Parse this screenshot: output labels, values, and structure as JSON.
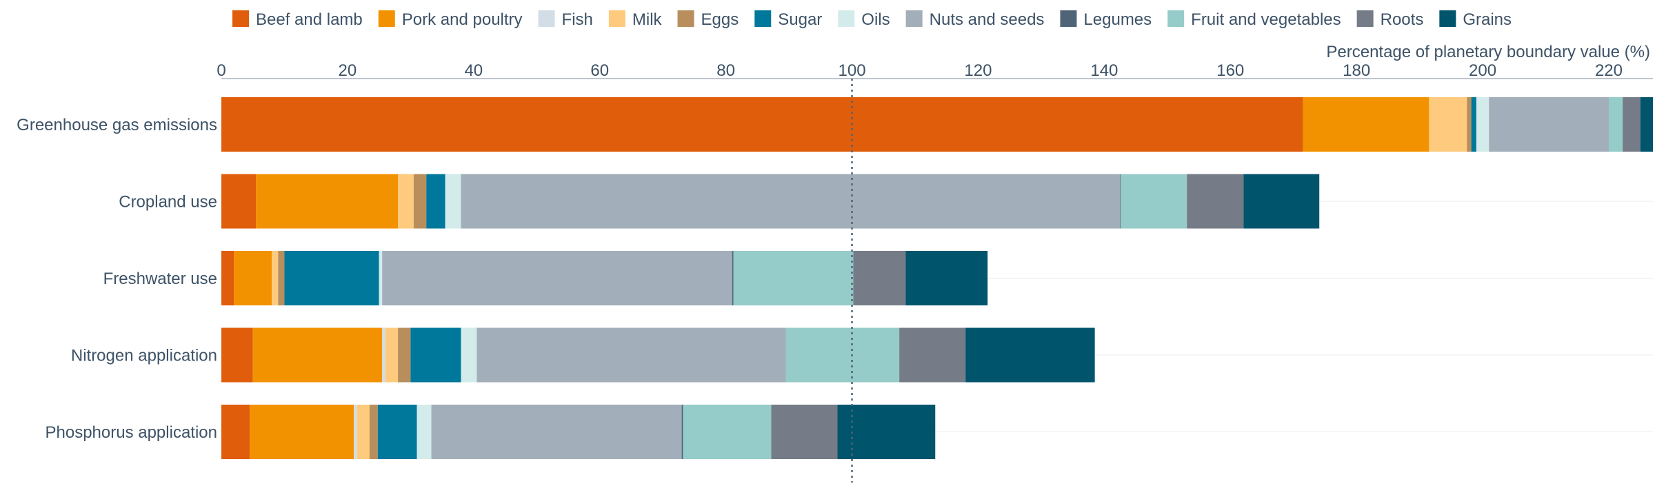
{
  "chart_data": {
    "type": "bar",
    "orientation": "horizontal",
    "stacked": true,
    "title": "",
    "xlabel": "Percentage of planetary boundary value (%)",
    "ylabel": "",
    "xlim": [
      0,
      227
    ],
    "x_ticks": [
      0,
      20,
      40,
      60,
      80,
      100,
      120,
      140,
      160,
      180,
      200,
      220
    ],
    "reference_line": {
      "value": 100,
      "style": "dotted"
    },
    "legend_position": "top",
    "grid": "horizontal",
    "categories": [
      "Greenhouse gas emissions",
      "Cropland use",
      "Freshwater use",
      "Nitrogen application",
      "Phosphorus application"
    ],
    "series": [
      {
        "name": "Beef and lamb",
        "color": "#df5d0b",
        "values": [
          171.5,
          5.5,
          2.0,
          5.0,
          4.5
        ]
      },
      {
        "name": "Pork and poultry",
        "color": "#f39200",
        "values": [
          20.0,
          22.5,
          6.0,
          20.5,
          16.5
        ]
      },
      {
        "name": "Fish",
        "color": "#d2dde6",
        "values": [
          0.0,
          0.0,
          0.0,
          0.5,
          0.5
        ]
      },
      {
        "name": "Milk",
        "color": "#fdca7e",
        "values": [
          6.0,
          2.5,
          1.0,
          2.0,
          2.0
        ]
      },
      {
        "name": "Eggs",
        "color": "#b88f5c",
        "values": [
          0.7,
          2.0,
          1.0,
          2.0,
          1.3
        ]
      },
      {
        "name": "Sugar",
        "color": "#00789b",
        "values": [
          0.8,
          3.0,
          15.0,
          8.0,
          6.2
        ]
      },
      {
        "name": "Oils",
        "color": "#d3eceb",
        "values": [
          2.0,
          2.5,
          0.5,
          2.5,
          2.3
        ]
      },
      {
        "name": "Nuts and seeds",
        "color": "#a2aeb9",
        "values": [
          19.0,
          104.5,
          55.5,
          49.0,
          39.7
        ]
      },
      {
        "name": "Legumes",
        "color": "#4f6477",
        "values": [
          0.0,
          0.1,
          0.2,
          0.0,
          0.2
        ]
      },
      {
        "name": "Fruit and vegetables",
        "color": "#95cbc9",
        "values": [
          2.2,
          10.5,
          19.0,
          18.0,
          14.0
        ]
      },
      {
        "name": "Roots",
        "color": "#757c87",
        "values": [
          2.8,
          9.0,
          8.3,
          10.5,
          10.5
        ]
      },
      {
        "name": "Grains",
        "color": "#00546c",
        "values": [
          2.0,
          12.0,
          13.0,
          20.5,
          15.5
        ]
      }
    ]
  }
}
